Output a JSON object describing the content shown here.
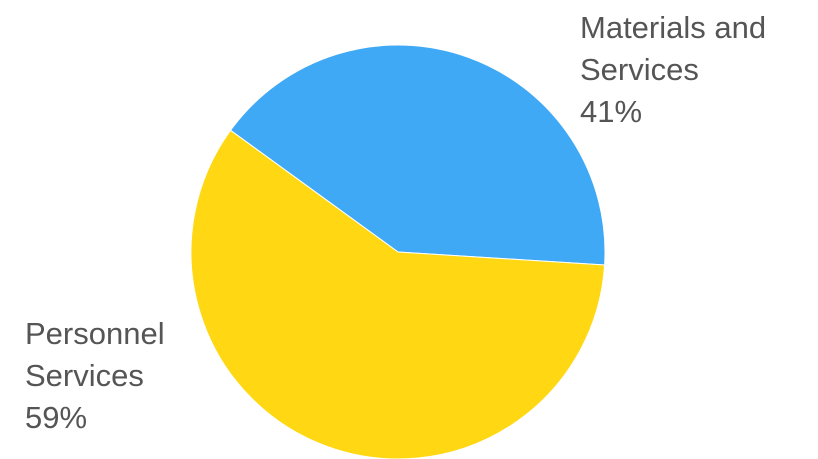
{
  "chart_data": {
    "type": "pie",
    "slices": [
      {
        "label_lines": [
          "Materials and",
          "Services"
        ],
        "percent_label": "41%",
        "value": 41,
        "color": "#3FA9F5"
      },
      {
        "label_lines": [
          "Personnel",
          "Services"
        ],
        "percent_label": "59%",
        "value": 59,
        "color": "#FFD712"
      }
    ],
    "legend": "none (labels beside slices)"
  }
}
